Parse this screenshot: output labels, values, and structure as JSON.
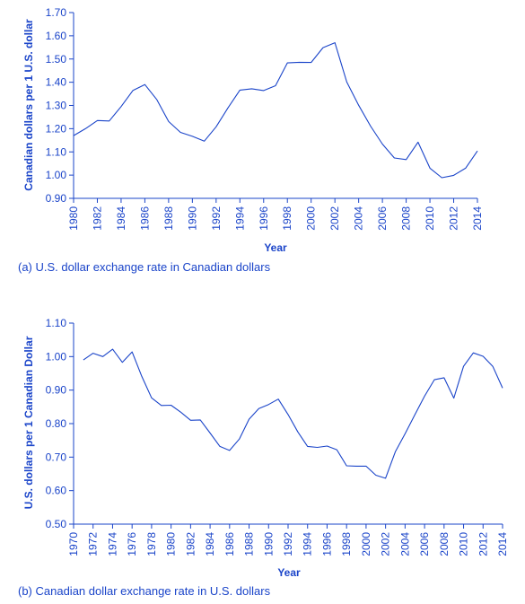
{
  "chart_data": [
    {
      "type": "line",
      "caption": "(a) U.S. dollar exchange rate in Canadian dollars",
      "xlabel": "Year",
      "ylabel": "Canadian dollars per 1 U.S. dollar",
      "xlim": [
        1980,
        2014
      ],
      "ylim": [
        0.9,
        1.7
      ],
      "xticks": [
        1980,
        1982,
        1984,
        1986,
        1988,
        1990,
        1992,
        1994,
        1996,
        1998,
        2000,
        2002,
        2004,
        2006,
        2008,
        2010,
        2012,
        2014
      ],
      "yticks": [
        "0.90",
        "1.00",
        "1.10",
        "1.20",
        "1.30",
        "1.40",
        "1.50",
        "1.60",
        "1.70"
      ],
      "color": "#1a44c9",
      "series": [
        {
          "x": [
            1980,
            1981,
            1982,
            1983,
            1984,
            1985,
            1986,
            1987,
            1988,
            1989,
            1990,
            1991,
            1992,
            1993,
            1994,
            1995,
            1996,
            1997,
            1998,
            1999,
            2000,
            2001,
            2002,
            2003,
            2004,
            2005,
            2006,
            2007,
            2008,
            2009,
            2010,
            2011,
            2012,
            2013,
            2014
          ],
          "y": [
            1.17,
            1.2,
            1.235,
            1.233,
            1.295,
            1.365,
            1.39,
            1.326,
            1.231,
            1.184,
            1.167,
            1.146,
            1.208,
            1.29,
            1.366,
            1.372,
            1.364,
            1.385,
            1.483,
            1.486,
            1.485,
            1.549,
            1.57,
            1.401,
            1.301,
            1.211,
            1.134,
            1.074,
            1.067,
            1.142,
            1.03,
            0.989,
            0.999,
            1.03,
            1.104
          ]
        }
      ]
    },
    {
      "type": "line",
      "caption": "(b) Canadian dollar exchange rate in U.S. dollars",
      "xlabel": "Year",
      "ylabel": "U.S. dollars per 1 Canadian Dollar",
      "xlim": [
        1970,
        2014
      ],
      "ylim": [
        0.5,
        1.1
      ],
      "xticks": [
        1970,
        1972,
        1974,
        1976,
        1978,
        1980,
        1982,
        1984,
        1986,
        1988,
        1990,
        1992,
        1994,
        1996,
        1998,
        2000,
        2002,
        2004,
        2006,
        2008,
        2010,
        2012,
        2014
      ],
      "yticks": [
        "0.50",
        "0.60",
        "0.70",
        "0.80",
        "0.90",
        "1.00",
        "1.10"
      ],
      "color": "#1a44c9",
      "series": [
        {
          "x": [
            1971,
            1972,
            1973,
            1974,
            1975,
            1976,
            1977,
            1978,
            1979,
            1980,
            1981,
            1982,
            1983,
            1984,
            1985,
            1986,
            1987,
            1988,
            1989,
            1990,
            1991,
            1992,
            1993,
            1994,
            1995,
            1996,
            1997,
            1998,
            1999,
            2000,
            2001,
            2002,
            2003,
            2004,
            2005,
            2006,
            2007,
            2008,
            2009,
            2010,
            2011,
            2012,
            2013,
            2014
          ],
          "y": [
            0.99,
            1.01,
            1.0,
            1.022,
            0.983,
            1.014,
            0.941,
            0.877,
            0.854,
            0.855,
            0.834,
            0.81,
            0.811,
            0.772,
            0.732,
            0.72,
            0.754,
            0.813,
            0.845,
            0.857,
            0.873,
            0.827,
            0.775,
            0.732,
            0.729,
            0.733,
            0.722,
            0.674,
            0.673,
            0.673,
            0.646,
            0.637,
            0.716,
            0.77,
            0.826,
            0.882,
            0.931,
            0.937,
            0.876,
            0.971,
            1.011,
            1.001,
            0.971,
            0.906
          ]
        }
      ]
    }
  ]
}
